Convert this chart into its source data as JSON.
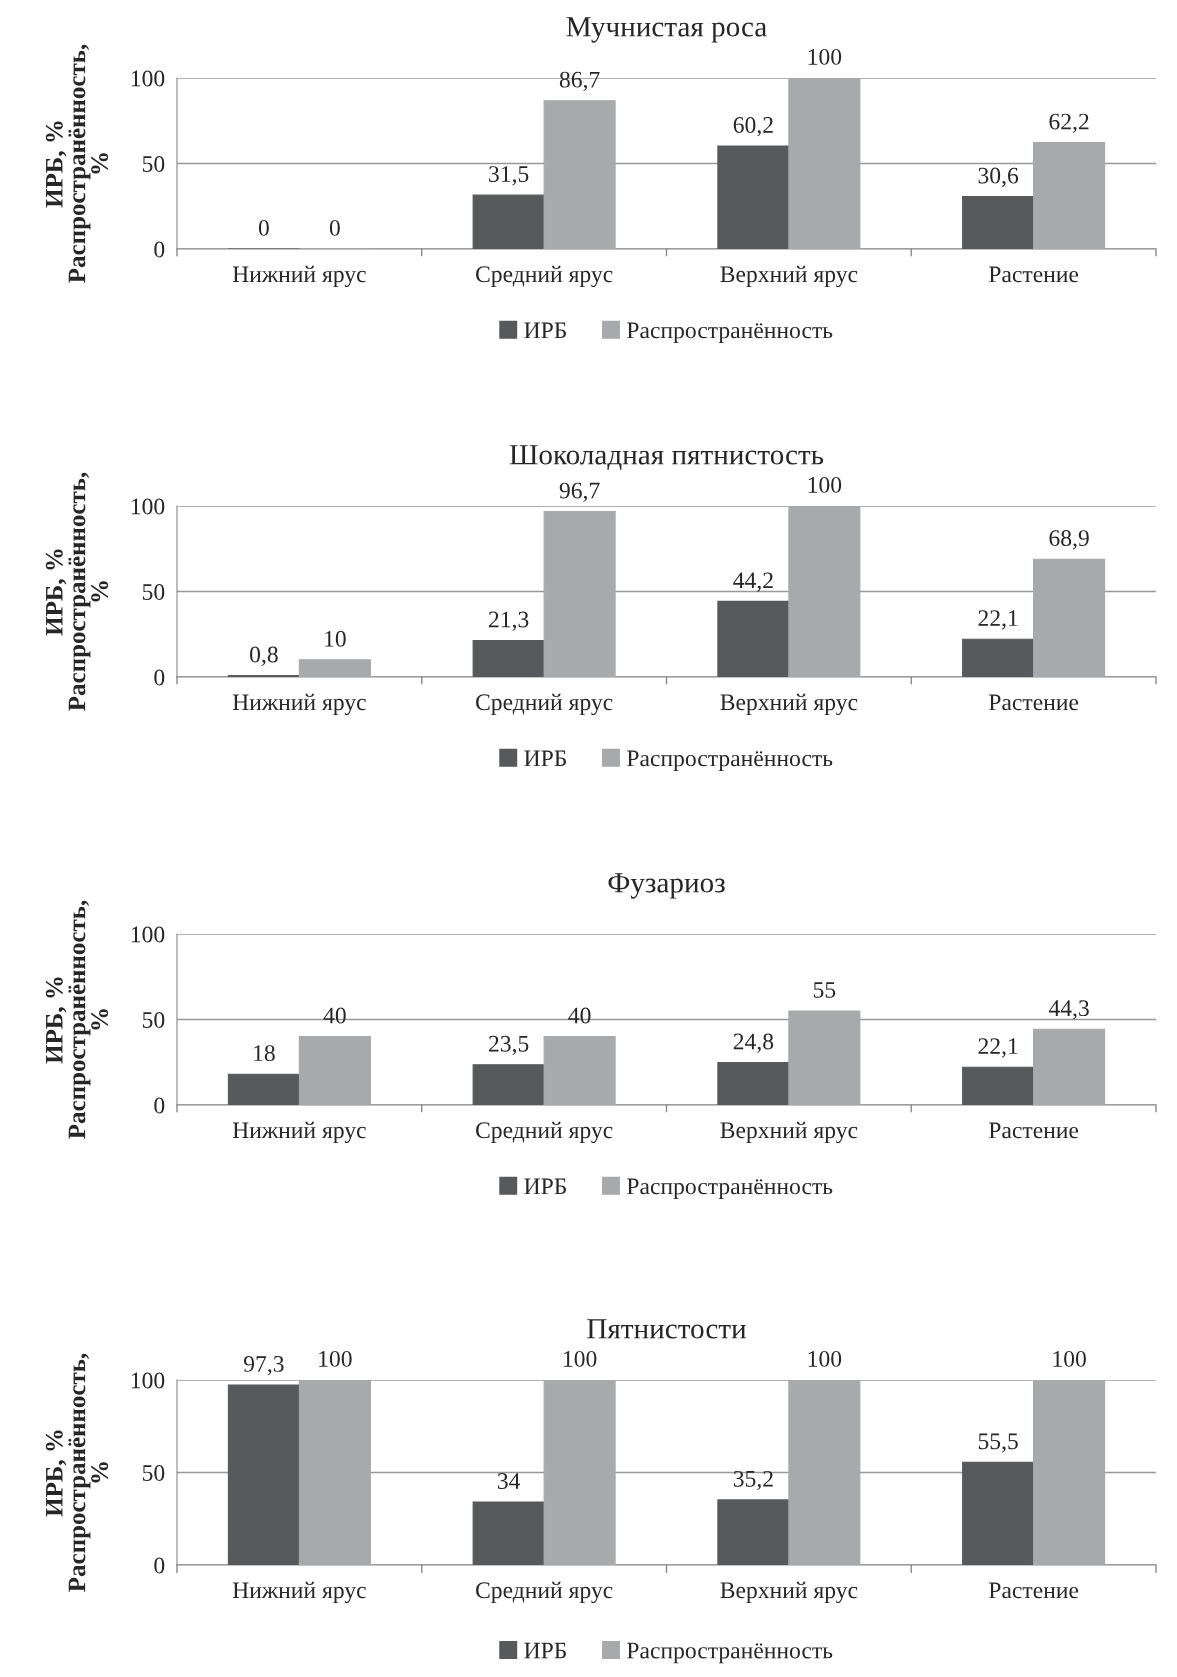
{
  "chart_data": [
    {
      "type": "bar",
      "title": "Мучнистая роса",
      "ylabel": "ИРБ, %\nРаспространённость,\n%",
      "categories": [
        "Нижний ярус",
        "Средний ярус",
        "Верхний ярус",
        "Растение"
      ],
      "series": [
        {
          "name": "ИРБ",
          "color": "#58595b",
          "values": [
            0,
            31.5,
            60.2,
            30.6
          ],
          "value_labels": [
            "0",
            "31,5",
            "60,2",
            "30,6"
          ]
        },
        {
          "name": "Распространённость",
          "color": "#a7a9ab",
          "values": [
            0,
            86.7,
            100,
            62.2
          ],
          "value_labels": [
            "0",
            "86,7",
            "100",
            "62,2"
          ]
        }
      ],
      "ylim": [
        0,
        100
      ],
      "yticks": [
        0,
        50,
        100
      ],
      "grid": "y",
      "legend": "bottom"
    },
    {
      "type": "bar",
      "title": "Шоколадная пятнистость",
      "ylabel": "ИРБ, %\nРаспространённость,\n%",
      "categories": [
        "Нижний ярус",
        "Средний ярус",
        "Верхний ярус",
        "Растение"
      ],
      "series": [
        {
          "name": "ИРБ",
          "color": "#58595b",
          "values": [
            0.8,
            21.3,
            44.2,
            22.1
          ],
          "value_labels": [
            "0,8",
            "21,3",
            "44,2",
            "22,1"
          ]
        },
        {
          "name": "Распространённость",
          "color": "#a7a9ab",
          "values": [
            10,
            96.7,
            100,
            68.9
          ],
          "value_labels": [
            "10",
            "96,7",
            "100",
            "68,9"
          ]
        }
      ],
      "ylim": [
        0,
        100
      ],
      "yticks": [
        0,
        50,
        100
      ],
      "grid": "y",
      "legend": "bottom"
    },
    {
      "type": "bar",
      "title": "Фузариоз",
      "ylabel": "ИРБ, %\nРаспространённость,\n%",
      "categories": [
        "Нижний ярус",
        "Средний ярус",
        "Верхний ярус",
        "Растение"
      ],
      "series": [
        {
          "name": "ИРБ",
          "color": "#58595b",
          "values": [
            18,
            23.5,
            24.8,
            22.1
          ],
          "value_labels": [
            "18",
            "23,5",
            "24,8",
            "22,1"
          ]
        },
        {
          "name": "Распространённость",
          "color": "#a7a9ab",
          "values": [
            40,
            40,
            55,
            44.3
          ],
          "value_labels": [
            "40",
            "40",
            "55",
            "44,3"
          ]
        }
      ],
      "ylim": [
        0,
        100
      ],
      "yticks": [
        0,
        50,
        100
      ],
      "grid": "y",
      "legend": "bottom"
    },
    {
      "type": "bar",
      "title": "Пятнистости",
      "ylabel": "ИРБ, %\nРаспространённость,\n%",
      "categories": [
        "Нижний ярус",
        "Средний ярус",
        "Верхний ярус",
        "Растение"
      ],
      "series": [
        {
          "name": "ИРБ",
          "color": "#58595b",
          "values": [
            97.3,
            34,
            35.2,
            55.5
          ],
          "value_labels": [
            "97,3",
            "34",
            "35,2",
            "55,5"
          ]
        },
        {
          "name": "Распространённость",
          "color": "#a7a9ab",
          "values": [
            100,
            100,
            100,
            100
          ],
          "value_labels": [
            "100",
            "100",
            "100",
            "100"
          ]
        }
      ],
      "ylim": [
        0,
        100
      ],
      "yticks": [
        0,
        50,
        100
      ],
      "grid": "y",
      "legend": "bottom"
    }
  ]
}
